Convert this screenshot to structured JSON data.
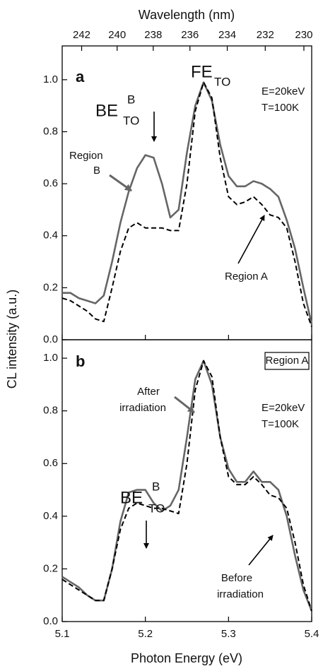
{
  "chart_data": {
    "type": "line",
    "xlabel": "Photon Energy (eV)",
    "ylabel": "CL intensity (a.u.)",
    "x2label": "Wavelength (nm)",
    "xlim": [
      5.1,
      5.4
    ],
    "xticks": [
      5.1,
      5.2,
      5.3,
      5.4
    ],
    "x2lim": [
      243.11,
      229.6
    ],
    "x2ticks": [
      242,
      240,
      238,
      236,
      234,
      232,
      230
    ],
    "x": [
      5.1,
      5.11,
      5.12,
      5.13,
      5.14,
      5.15,
      5.16,
      5.17,
      5.18,
      5.19,
      5.2,
      5.21,
      5.22,
      5.23,
      5.24,
      5.25,
      5.26,
      5.27,
      5.28,
      5.29,
      5.3,
      5.31,
      5.32,
      5.33,
      5.34,
      5.35,
      5.36,
      5.37,
      5.38,
      5.39,
      5.4
    ],
    "panels": [
      {
        "label": "a",
        "ylim": [
          0,
          1.13
        ],
        "yticks": [
          {
            "value": 0,
            "label": "0.0"
          },
          0.2,
          0.4,
          0.6,
          0.8,
          {
            "value": 1,
            "label": "1.0"
          }
        ],
        "series": [
          {
            "color": "#666666",
            "dash": "solid",
            "values": [
              0.18,
              0.18,
              0.16,
              0.15,
              0.14,
              0.17,
              0.3,
              0.45,
              0.57,
              0.66,
              0.71,
              0.7,
              0.6,
              0.47,
              0.5,
              0.72,
              0.9,
              0.99,
              0.92,
              0.75,
              0.63,
              0.59,
              0.59,
              0.61,
              0.6,
              0.58,
              0.55,
              0.46,
              0.35,
              0.2,
              0.06
            ]
          },
          {
            "color": "#000000",
            "dash": "dashed",
            "values": [
              0.16,
              0.15,
              0.13,
              0.11,
              0.08,
              0.07,
              0.2,
              0.34,
              0.43,
              0.45,
              0.43,
              0.43,
              0.43,
              0.42,
              0.42,
              0.6,
              0.88,
              0.99,
              0.93,
              0.7,
              0.55,
              0.52,
              0.53,
              0.55,
              0.52,
              0.48,
              0.47,
              0.43,
              0.3,
              0.14,
              0.05
            ]
          }
        ],
        "annotations": [
          {
            "text": "FE",
            "sub": "TO"
          },
          {
            "text": "BE",
            "sup": "B",
            "sub": "TO"
          },
          {
            "lines": [
              "E=20keV",
              "T=100K"
            ]
          },
          {
            "lines": [
              "Region",
              "B"
            ]
          },
          {
            "text": "Region A"
          }
        ]
      },
      {
        "label": "b",
        "ylim": [
          0,
          1.07
        ],
        "yticks": [
          {
            "value": 0,
            "label": "0.0"
          },
          0.2,
          0.4,
          0.6,
          0.8,
          {
            "value": 1,
            "label": "1.0"
          }
        ],
        "series": [
          {
            "color": "#666666",
            "dash": "solid",
            "values": [
              0.17,
              0.15,
              0.13,
              0.1,
              0.08,
              0.08,
              0.2,
              0.38,
              0.49,
              0.5,
              0.5,
              0.45,
              0.42,
              0.44,
              0.5,
              0.7,
              0.92,
              0.99,
              0.9,
              0.7,
              0.58,
              0.53,
              0.53,
              0.57,
              0.53,
              0.53,
              0.5,
              0.4,
              0.25,
              0.12,
              0.04
            ]
          },
          {
            "color": "#000000",
            "dash": "dashed",
            "values": [
              0.16,
              0.14,
              0.12,
              0.1,
              0.08,
              0.08,
              0.2,
              0.35,
              0.43,
              0.45,
              0.44,
              0.43,
              0.43,
              0.42,
              0.41,
              0.6,
              0.88,
              0.99,
              0.93,
              0.7,
              0.55,
              0.52,
              0.52,
              0.55,
              0.52,
              0.48,
              0.47,
              0.43,
              0.3,
              0.14,
              0.04
            ]
          }
        ],
        "annotations": [
          {
            "text": "Region A"
          },
          {
            "lines": [
              "After",
              "irradiation"
            ]
          },
          {
            "lines": [
              "E=20keV",
              "T=100K"
            ]
          },
          {
            "text": "BE",
            "sup": "B",
            "sub": "TO"
          },
          {
            "lines": [
              "Before",
              "irradiation"
            ]
          }
        ]
      }
    ]
  }
}
